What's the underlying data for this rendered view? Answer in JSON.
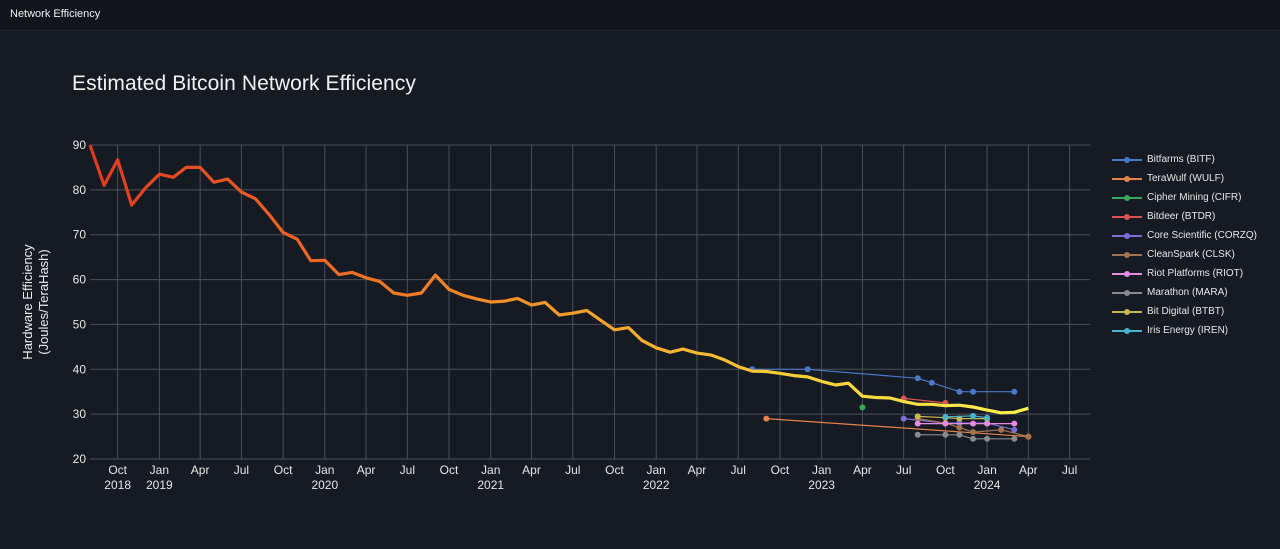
{
  "app": {
    "window_title": "Network Efficiency"
  },
  "chart_data": {
    "type": "line",
    "title": "Estimated Bitcoin Network Efficiency",
    "ylabel_line1": "Hardware Efficiency",
    "ylabel_line2": "(Joules/TeraHash)",
    "xlabel": "",
    "ylim": [
      20,
      90
    ],
    "yticks": [
      20,
      30,
      40,
      50,
      60,
      70,
      80,
      90
    ],
    "xlim": [
      "2018-08-01",
      "2024-08-15"
    ],
    "xticks": [
      {
        "date": "2018-10-01",
        "label": "Oct",
        "year": "2018"
      },
      {
        "date": "2019-01-01",
        "label": "Jan",
        "year": "2019"
      },
      {
        "date": "2019-04-01",
        "label": "Apr",
        "year": ""
      },
      {
        "date": "2019-07-01",
        "label": "Jul",
        "year": ""
      },
      {
        "date": "2019-10-01",
        "label": "Oct",
        "year": ""
      },
      {
        "date": "2020-01-01",
        "label": "Jan",
        "year": "2020"
      },
      {
        "date": "2020-04-01",
        "label": "Apr",
        "year": ""
      },
      {
        "date": "2020-07-01",
        "label": "Jul",
        "year": ""
      },
      {
        "date": "2020-10-01",
        "label": "Oct",
        "year": ""
      },
      {
        "date": "2021-01-01",
        "label": "Jan",
        "year": "2021"
      },
      {
        "date": "2021-04-01",
        "label": "Apr",
        "year": ""
      },
      {
        "date": "2021-07-01",
        "label": "Jul",
        "year": ""
      },
      {
        "date": "2021-10-01",
        "label": "Oct",
        "year": ""
      },
      {
        "date": "2022-01-01",
        "label": "Jan",
        "year": "2022"
      },
      {
        "date": "2022-04-01",
        "label": "Apr",
        "year": ""
      },
      {
        "date": "2022-07-01",
        "label": "Jul",
        "year": ""
      },
      {
        "date": "2022-10-01",
        "label": "Oct",
        "year": ""
      },
      {
        "date": "2023-01-01",
        "label": "Jan",
        "year": "2023"
      },
      {
        "date": "2023-04-01",
        "label": "Apr",
        "year": ""
      },
      {
        "date": "2023-07-01",
        "label": "Jul",
        "year": ""
      },
      {
        "date": "2023-10-01",
        "label": "Oct",
        "year": ""
      },
      {
        "date": "2024-01-01",
        "label": "Jan",
        "year": "2024"
      },
      {
        "date": "2024-04-01",
        "label": "Apr",
        "year": ""
      },
      {
        "date": "2024-07-01",
        "label": "Jul",
        "year": ""
      }
    ],
    "network_series": {
      "name": "Network Efficiency",
      "gradient": [
        "#e03a1e",
        "#ee6a24",
        "#f39a2a",
        "#f6cf36",
        "#fdf24d"
      ],
      "points": [
        [
          "2018-08-01",
          90.0
        ],
        [
          "2018-09-01",
          81.0
        ],
        [
          "2018-10-01",
          86.7
        ],
        [
          "2018-11-01",
          76.6
        ],
        [
          "2018-12-01",
          80.4
        ],
        [
          "2019-01-01",
          83.5
        ],
        [
          "2019-02-01",
          82.8
        ],
        [
          "2019-03-01",
          85.0
        ],
        [
          "2019-04-01",
          85.0
        ],
        [
          "2019-05-01",
          81.7
        ],
        [
          "2019-06-01",
          82.4
        ],
        [
          "2019-07-01",
          79.5
        ],
        [
          "2019-08-01",
          78.0
        ],
        [
          "2019-09-01",
          74.4
        ],
        [
          "2019-10-01",
          70.5
        ],
        [
          "2019-11-01",
          69.0
        ],
        [
          "2019-12-01",
          64.2
        ],
        [
          "2020-01-01",
          64.3
        ],
        [
          "2020-02-01",
          61.1
        ],
        [
          "2020-03-01",
          61.6
        ],
        [
          "2020-04-01",
          60.4
        ],
        [
          "2020-05-01",
          59.6
        ],
        [
          "2020-06-01",
          57.0
        ],
        [
          "2020-07-01",
          56.5
        ],
        [
          "2020-08-01",
          57.0
        ],
        [
          "2020-09-01",
          61.0
        ],
        [
          "2020-10-01",
          57.8
        ],
        [
          "2020-11-01",
          56.5
        ],
        [
          "2020-12-01",
          55.7
        ],
        [
          "2021-01-01",
          55.0
        ],
        [
          "2021-02-01",
          55.2
        ],
        [
          "2021-03-01",
          55.8
        ],
        [
          "2021-04-01",
          54.3
        ],
        [
          "2021-05-01",
          54.9
        ],
        [
          "2021-06-01",
          52.1
        ],
        [
          "2021-07-01",
          52.5
        ],
        [
          "2021-08-01",
          53.1
        ],
        [
          "2021-09-01",
          50.9
        ],
        [
          "2021-10-01",
          48.8
        ],
        [
          "2021-11-01",
          49.3
        ],
        [
          "2021-12-01",
          46.4
        ],
        [
          "2022-01-01",
          44.8
        ],
        [
          "2022-02-01",
          43.8
        ],
        [
          "2022-03-01",
          44.5
        ],
        [
          "2022-04-01",
          43.6
        ],
        [
          "2022-05-01",
          43.2
        ],
        [
          "2022-06-01",
          42.1
        ],
        [
          "2022-07-01",
          40.6
        ],
        [
          "2022-08-01",
          39.6
        ],
        [
          "2022-09-01",
          39.5
        ],
        [
          "2022-10-01",
          39.1
        ],
        [
          "2022-11-01",
          38.6
        ],
        [
          "2022-12-01",
          38.3
        ],
        [
          "2023-01-01",
          37.3
        ],
        [
          "2023-02-01",
          36.5
        ],
        [
          "2023-03-01",
          36.9
        ],
        [
          "2023-04-01",
          34.0
        ],
        [
          "2023-05-01",
          33.7
        ],
        [
          "2023-06-01",
          33.6
        ],
        [
          "2023-07-01",
          32.8
        ],
        [
          "2023-08-01",
          32.2
        ],
        [
          "2023-09-01",
          32.2
        ],
        [
          "2023-10-01",
          31.9
        ],
        [
          "2023-11-01",
          32.0
        ],
        [
          "2023-12-01",
          31.6
        ],
        [
          "2024-01-01",
          30.9
        ],
        [
          "2024-02-01",
          30.3
        ],
        [
          "2024-03-01",
          30.4
        ],
        [
          "2024-04-01",
          31.3
        ]
      ]
    },
    "series": [
      {
        "name": "Bitfarms (BITF)",
        "color": "#4c78c8",
        "points": [
          [
            "2022-08-01",
            40.0
          ],
          [
            "2022-12-01",
            40.0
          ],
          [
            "2023-08-01",
            38.0
          ],
          [
            "2023-09-01",
            37.0
          ],
          [
            "2023-11-01",
            35.0
          ],
          [
            "2023-12-01",
            35.0
          ],
          [
            "2024-03-01",
            35.0
          ]
        ]
      },
      {
        "name": "TeraWulf (WULF)",
        "color": "#e5834a",
        "points": [
          [
            "2022-09-01",
            29.0
          ],
          [
            "2024-04-01",
            25.0
          ]
        ]
      },
      {
        "name": "Cipher Mining (CIFR)",
        "color": "#3aa85c",
        "points": [
          [
            "2023-04-01",
            31.5
          ]
        ]
      },
      {
        "name": "Bitdeer (BTDR)",
        "color": "#d9534f",
        "points": [
          [
            "2023-07-01",
            33.5
          ],
          [
            "2023-10-01",
            32.5
          ]
        ]
      },
      {
        "name": "Core Scientific (CORZQ)",
        "color": "#7d6ed6",
        "points": [
          [
            "2023-07-01",
            29.0
          ],
          [
            "2023-10-01",
            28.0
          ],
          [
            "2023-11-01",
            28.0
          ],
          [
            "2024-01-01",
            28.0
          ],
          [
            "2024-03-01",
            26.5
          ]
        ]
      },
      {
        "name": "CleanSpark (CLSK)",
        "color": "#a47451",
        "points": [
          [
            "2023-08-01",
            29.0
          ],
          [
            "2023-10-01",
            28.0
          ],
          [
            "2023-11-01",
            27.0
          ],
          [
            "2023-12-01",
            26.0
          ],
          [
            "2024-02-01",
            26.5
          ],
          [
            "2024-04-01",
            25.0
          ]
        ]
      },
      {
        "name": "Riot Platforms (RIOT)",
        "color": "#e58be0",
        "points": [
          [
            "2023-08-01",
            27.9
          ],
          [
            "2023-10-01",
            27.9
          ],
          [
            "2023-12-01",
            27.9
          ],
          [
            "2024-01-01",
            27.9
          ],
          [
            "2024-03-01",
            27.9
          ]
        ]
      },
      {
        "name": "Marathon (MARA)",
        "color": "#8a8a8a",
        "points": [
          [
            "2023-08-01",
            25.4
          ],
          [
            "2023-10-01",
            25.4
          ],
          [
            "2023-11-01",
            25.4
          ],
          [
            "2023-12-01",
            24.5
          ],
          [
            "2024-01-01",
            24.5
          ],
          [
            "2024-03-01",
            24.5
          ]
        ]
      },
      {
        "name": "Bit Digital (BTBT)",
        "color": "#c7b850",
        "points": [
          [
            "2023-08-01",
            29.5
          ],
          [
            "2023-10-01",
            29.2
          ],
          [
            "2023-11-01",
            29.0
          ],
          [
            "2024-01-01",
            29.0
          ]
        ]
      },
      {
        "name": "Iris Energy (IREN)",
        "color": "#46b6d0",
        "points": [
          [
            "2023-10-01",
            29.4
          ],
          [
            "2023-12-01",
            29.6
          ],
          [
            "2024-01-01",
            29.2
          ]
        ]
      }
    ],
    "grid": true,
    "legend_position": "right"
  }
}
